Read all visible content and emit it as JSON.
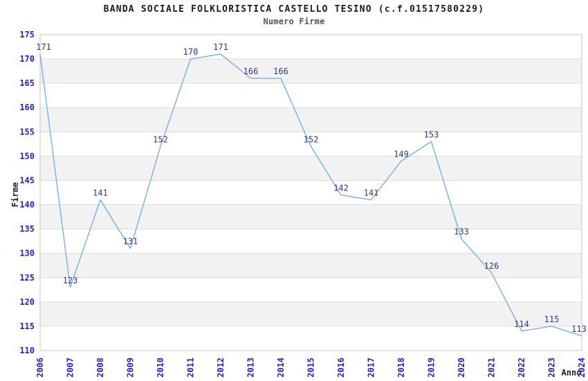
{
  "chart_data": {
    "type": "line",
    "title": "BANDA SOCIALE FOLKLORISTICA CASTELLO TESINO (c.f.01517580229)",
    "subtitle": "Numero Firme",
    "xlabel": "Anno",
    "ylabel": "Firme",
    "x": [
      "2006",
      "2007",
      "2008",
      "2009",
      "2010",
      "2011",
      "2012",
      "2013",
      "2014",
      "2015",
      "2016",
      "2017",
      "2018",
      "2019",
      "2020",
      "2021",
      "2022",
      "2023",
      "2024"
    ],
    "series": [
      {
        "name": "Numero Firme",
        "values": [
          171,
          123,
          141,
          131,
          152,
          170,
          171,
          166,
          166,
          152,
          142,
          141,
          149,
          153,
          133,
          126,
          114,
          115,
          113
        ]
      }
    ],
    "ylim": [
      110,
      175
    ],
    "ytick_step": 5,
    "grid": true,
    "legend": "none",
    "point_labels_shown": true,
    "colors": {
      "line": "#6fa8e4",
      "point_label": "#333380",
      "tick_label": "#2222cc",
      "band_alt": "#f2f2f2",
      "grid_line": "#dcdcdc",
      "plot_border": "#c4c4c4",
      "title": "#1a1a1a",
      "subtitle": "#555555",
      "axis_label": "#222222",
      "background": "#ffffff"
    }
  }
}
